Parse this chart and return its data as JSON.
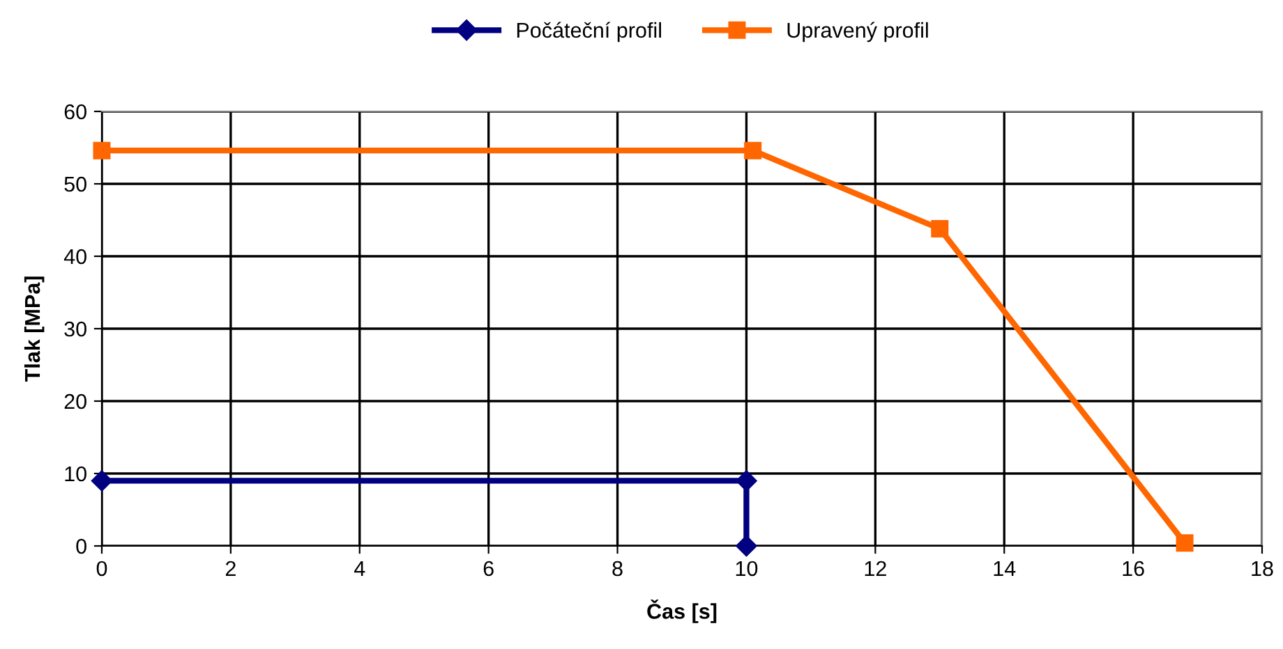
{
  "chart_data": {
    "type": "line",
    "xlabel": "Čas [s]",
    "ylabel": "Tlak [MPa]",
    "xlim": [
      0,
      18
    ],
    "xticks": [
      0,
      2,
      4,
      6,
      8,
      10,
      12,
      14,
      16,
      18
    ],
    "ylim": [
      0,
      60
    ],
    "yticks": [
      0,
      10,
      20,
      30,
      40,
      50,
      60
    ],
    "grid": true,
    "legend": "top",
    "series": [
      {
        "name": "Počáteční profil",
        "color": "#000080",
        "marker": "diamond",
        "x": [
          0,
          10,
          10
        ],
        "values": [
          9,
          9,
          0
        ]
      },
      {
        "name": "Upravený profil",
        "color": "#ff6600",
        "marker": "square",
        "x": [
          0,
          10.1,
          13,
          16.8
        ],
        "values": [
          54.6,
          54.6,
          43.8,
          0.4
        ]
      }
    ]
  }
}
